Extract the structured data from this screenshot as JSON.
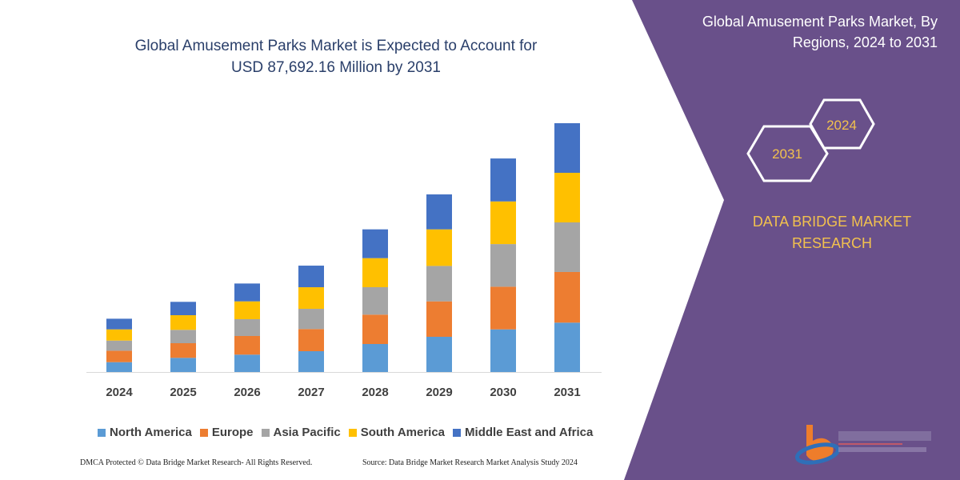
{
  "title": "Global Amusement Parks Market is Expected to Account for USD 87,692.16 Million by 2031",
  "title_line1": "Global Amusement Parks Market is Expected to Account for",
  "title_line2": "USD 87,692.16 Million by 2031",
  "side_panel": {
    "title_line1": "Global Amusement Parks Market, By",
    "title_line2": "Regions, 2024 to 2031",
    "hex_labels": [
      "2024",
      "2031"
    ],
    "brand_line1": "DATA BRIDGE MARKET",
    "brand_line2": "RESEARCH",
    "logo_text": "DATA BRIDGE MARKET RESEARCH",
    "color": "#69508a",
    "accent": "#f2c14e"
  },
  "footer": {
    "left": "DMCA Protected © Data Bridge Market Research-  All Rights Reserved.",
    "right": "Source: Data Bridge Market Research  Market Analysis Study 2024"
  },
  "chart_data": {
    "type": "bar",
    "stacked": true,
    "unit": "USD Million",
    "categories": [
      "2024",
      "2025",
      "2026",
      "2027",
      "2028",
      "2029",
      "2030",
      "2031"
    ],
    "series": [
      {
        "name": "North America",
        "color": "#5b9bd5",
        "values": [
          3470,
          4990,
          6120,
          7330,
          9870,
          12410,
          15030,
          17400
        ]
      },
      {
        "name": "Europe",
        "color": "#ed7d31",
        "values": [
          4030,
          5160,
          6570,
          7810,
          10350,
          12490,
          15030,
          17850
        ]
      },
      {
        "name": "Asia Pacific",
        "color": "#a5a5a5",
        "values": [
          3580,
          4710,
          5920,
          7130,
          9670,
          12490,
          15030,
          17480
        ]
      },
      {
        "name": "South America",
        "color": "#ffc000",
        "values": [
          3950,
          5160,
          6290,
          7610,
          10240,
          12890,
          15030,
          17480
        ]
      },
      {
        "name": "Middle East and Africa",
        "color": "#4472c4",
        "values": [
          3750,
          4710,
          6290,
          7610,
          10150,
          12320,
          15140,
          17480
        ]
      }
    ],
    "ylim": [
      0,
      87692.16
    ],
    "grid": false,
    "legend": "bottom",
    "y_axis_visible": false
  }
}
